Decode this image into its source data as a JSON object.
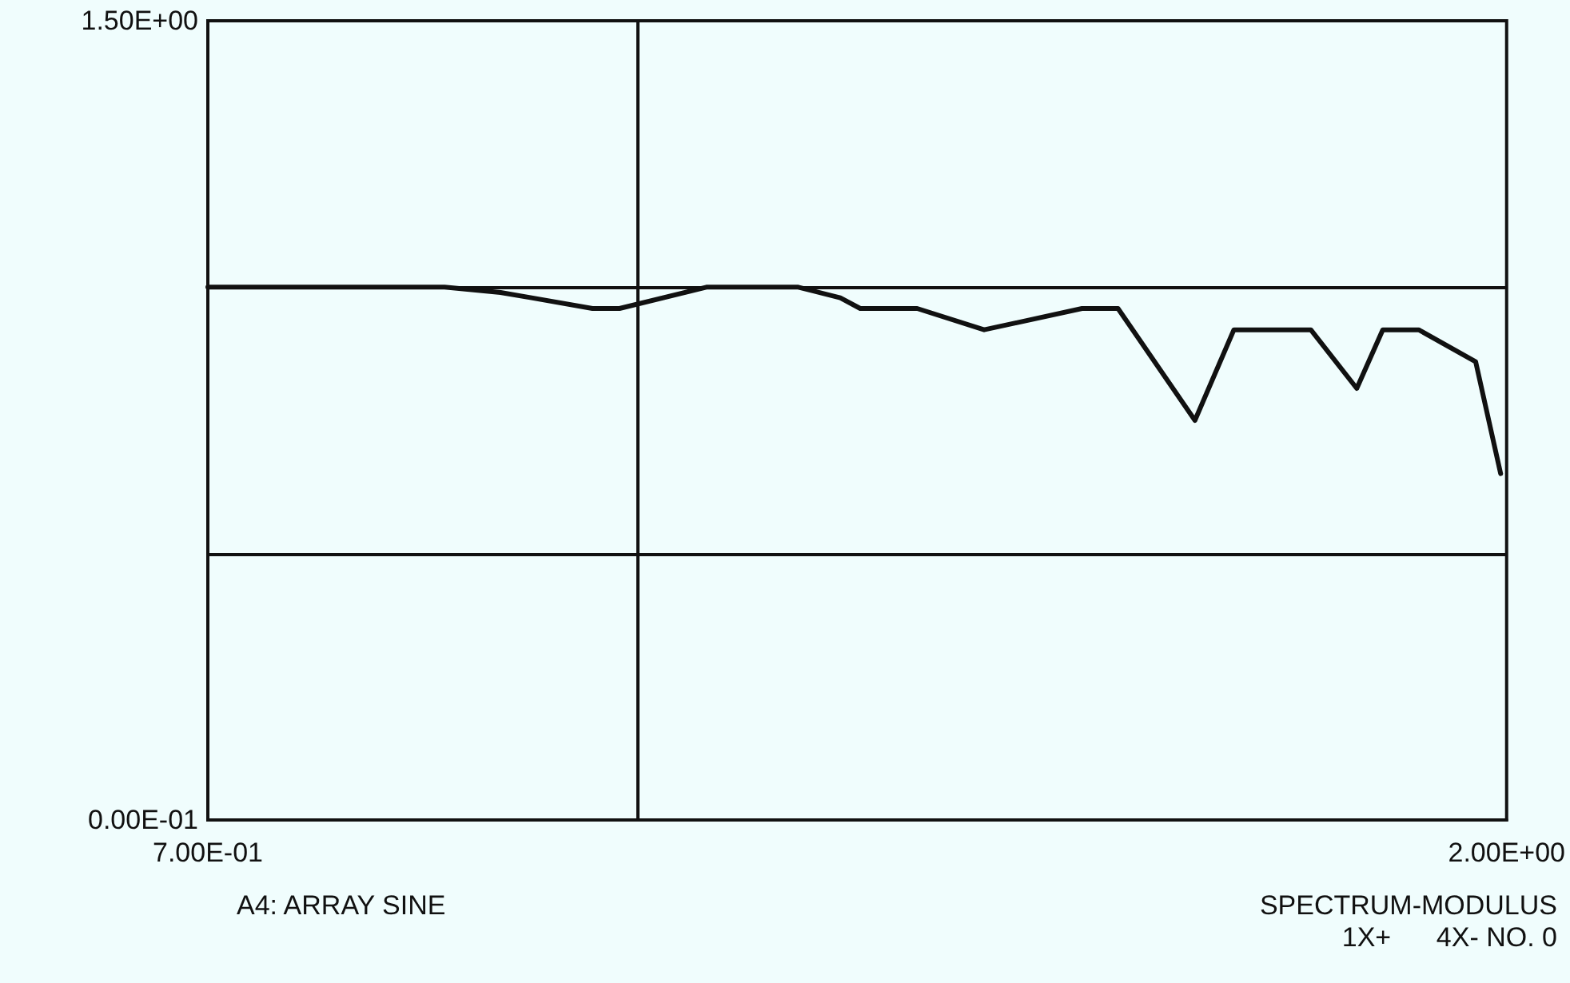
{
  "chart_data": {
    "type": "line",
    "x": [
      0.7,
      0.85,
      0.937,
      0.993,
      1.024,
      1.085,
      1.112,
      1.199,
      1.291,
      1.333,
      1.353,
      1.41,
      1.477,
      1.575,
      1.611,
      1.688,
      1.727,
      1.765,
      1.804,
      1.85,
      1.876,
      1.912,
      1.969,
      1.994
    ],
    "series": [
      {
        "color": "#111111",
        "values": [
          1.0,
          1.0,
          1.0,
          0.99,
          0.98,
          0.96,
          0.96,
          1.0,
          1.0,
          0.98,
          0.96,
          0.96,
          0.92,
          0.96,
          0.96,
          0.75,
          0.92,
          0.92,
          0.92,
          0.81,
          0.92,
          0.92,
          0.86,
          0.65
        ]
      }
    ],
    "xlim": [
      0.7,
      2.0
    ],
    "xticks": [
      {
        "value": 0.7,
        "label": "7.00E-01"
      },
      {
        "value": 2.0,
        "label": "2.00E+00"
      }
    ],
    "ylim": [
      0,
      1.5
    ],
    "yticks": [
      {
        "value": 0,
        "label": "0.00E-01"
      },
      {
        "value": 0.5,
        "label": null
      },
      {
        "value": 1.0,
        "label": null
      },
      {
        "value": 1.5,
        "label": "1.50E+00"
      }
    ],
    "grid": "y",
    "marker": "none",
    "line_style": "solid",
    "ref_lines": [
      {
        "axis": "x",
        "value": 1.13,
        "color": "#111111"
      }
    ],
    "annotations": [
      "A4: ARRAY SINE",
      "SPECTRUM-MODULUS",
      "1X+      4X- NO. 0"
    ]
  }
}
